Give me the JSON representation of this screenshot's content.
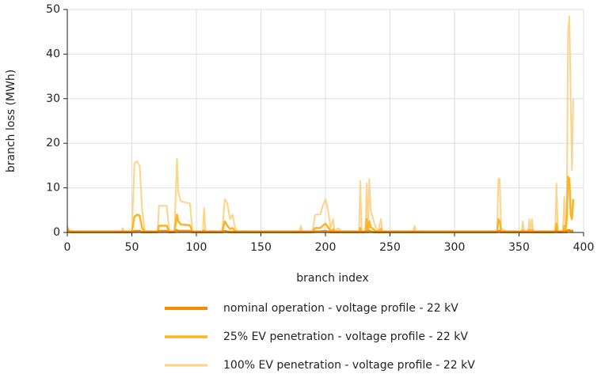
{
  "chart_data": {
    "type": "line",
    "xlabel": "branch index",
    "ylabel": "branch loss (MWh)",
    "xlim": [
      0,
      400
    ],
    "ylim": [
      0,
      50
    ],
    "xticks": [
      0,
      50,
      100,
      150,
      200,
      250,
      300,
      350,
      400
    ],
    "yticks": [
      0,
      10,
      20,
      30,
      40,
      50
    ],
    "grid": true,
    "legend": "bottom",
    "x": [
      0,
      2,
      42,
      43,
      44,
      50,
      52,
      54,
      56,
      58,
      60,
      70,
      71,
      77,
      79,
      83,
      85,
      86,
      88,
      95,
      97,
      105,
      106,
      107,
      120,
      122,
      124,
      126,
      128,
      130,
      132,
      180,
      181,
      182,
      190,
      192,
      196,
      198,
      200,
      202,
      204,
      206,
      207,
      210,
      212,
      226,
      227,
      228,
      231,
      232,
      233,
      234,
      235,
      237,
      239,
      241,
      243,
      244,
      268,
      269,
      270,
      333,
      334,
      335,
      336,
      340,
      352,
      353,
      354,
      357,
      358,
      359,
      360,
      361,
      378,
      379,
      380,
      384,
      385,
      386,
      387,
      388,
      389,
      390,
      391,
      392
    ],
    "series": [
      {
        "name": "nominal operation - voltage profile - 22 kV",
        "color": "#f28c00",
        "width": 3,
        "values": [
          0.2,
          0.1,
          0.1,
          0.1,
          0.1,
          0.1,
          0.3,
          0.3,
          0.3,
          0.1,
          0.1,
          0.1,
          0.3,
          0.3,
          0.1,
          0.1,
          0.5,
          0.3,
          0.3,
          0.3,
          0.1,
          0.1,
          0.1,
          0.1,
          0.1,
          0.3,
          0.2,
          0.1,
          0.1,
          0.1,
          0.1,
          0.1,
          0.1,
          0.1,
          0.1,
          0.2,
          0.2,
          0.3,
          0.3,
          0.2,
          0.1,
          0.1,
          0.1,
          0.1,
          0.1,
          0.1,
          0.2,
          0.1,
          0.1,
          0.3,
          0.1,
          0.3,
          0.2,
          0.1,
          0.1,
          0.1,
          0.1,
          0.1,
          0.1,
          0.1,
          0.1,
          0.1,
          0.3,
          0.3,
          0.1,
          0.1,
          0.1,
          0.1,
          0.1,
          0.1,
          0.1,
          0.1,
          0.1,
          0.1,
          0.1,
          0.3,
          0.1,
          0.1,
          0.2,
          0.1,
          0.3,
          0.5,
          0.5,
          0.3,
          0.3,
          0.4
        ]
      },
      {
        "name": "25% EV penetration - voltage profile - 22 kV",
        "color": "#fbb424",
        "width": 2.5,
        "values": [
          0.8,
          0.2,
          0.2,
          0.3,
          0.2,
          0.2,
          3.5,
          4,
          3.8,
          1,
          0.2,
          0.2,
          1.5,
          1.5,
          0.2,
          0.2,
          4,
          2.5,
          1.8,
          1.6,
          0.2,
          0.2,
          0.5,
          0.2,
          0.2,
          2.5,
          1.5,
          0.8,
          1,
          0.3,
          0.2,
          0.2,
          0.3,
          0.2,
          0.2,
          1,
          1,
          1.5,
          2,
          1.2,
          0.3,
          0.7,
          0.2,
          0.3,
          0.2,
          0.2,
          1,
          0.2,
          0.2,
          3,
          0.2,
          2.5,
          1.2,
          0.8,
          0.3,
          0.2,
          0.8,
          0.2,
          0.2,
          0.3,
          0.2,
          0.2,
          3,
          2.5,
          0.3,
          0.2,
          0.2,
          0.5,
          0.2,
          0.2,
          0.6,
          0.2,
          0.6,
          0.2,
          0.2,
          2,
          0.2,
          0.2,
          1.5,
          0.2,
          3,
          12.5,
          12,
          4,
          3,
          7.5
        ]
      },
      {
        "name": "100% EV penetration - voltage profile - 22 kV",
        "color": "#fdd38a",
        "width": 2,
        "values": [
          1.5,
          0.3,
          0.3,
          1,
          0.3,
          0.3,
          15.5,
          16,
          15,
          5,
          0.3,
          0.3,
          6,
          6,
          0.3,
          0.3,
          16.5,
          9,
          7,
          6.5,
          0.3,
          0.3,
          5.5,
          0.3,
          0.3,
          7.5,
          6.5,
          3,
          4,
          1,
          0.3,
          0.3,
          1.5,
          0.3,
          0.3,
          4,
          4,
          6,
          7.5,
          5,
          1,
          3,
          0.3,
          1,
          0.3,
          0.3,
          11.5,
          0.3,
          0.3,
          11,
          0.3,
          12,
          5,
          3,
          1,
          0.3,
          3,
          0.3,
          0.3,
          1.5,
          0.3,
          0.3,
          12,
          12,
          1,
          0.3,
          0.3,
          2.5,
          0.3,
          0.3,
          3,
          0.3,
          3,
          0.3,
          0.3,
          11,
          0.3,
          0.3,
          8,
          0.3,
          8,
          45,
          48.5,
          30,
          14,
          30
        ]
      }
    ]
  }
}
